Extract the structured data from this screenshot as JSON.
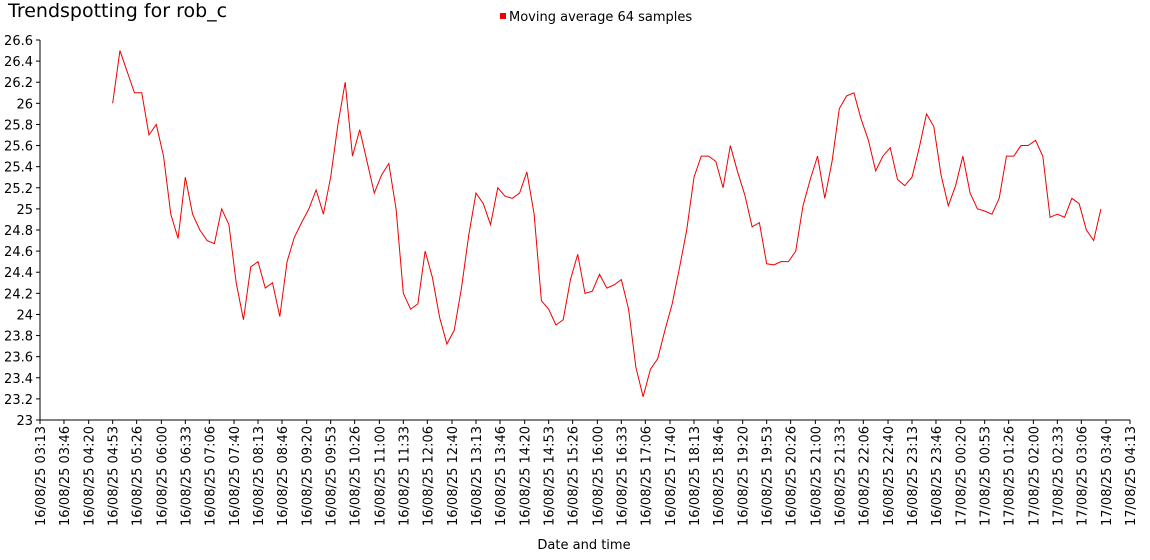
{
  "chart_data": {
    "type": "line",
    "title": "Trendspotting for rob_c",
    "x_label": "Date and time",
    "legend": "top",
    "x": [
      "16/08/25 04:53",
      "16/08/25 05:03",
      "16/08/25 05:13",
      "16/08/25 05:23",
      "16/08/25 05:33",
      "16/08/25 05:43",
      "16/08/25 05:53",
      "16/08/25 06:03",
      "16/08/25 06:13",
      "16/08/25 06:23",
      "16/08/25 06:33",
      "16/08/25 06:43",
      "16/08/25 06:53",
      "16/08/25 07:03",
      "16/08/25 07:13",
      "16/08/25 07:23",
      "16/08/25 07:33",
      "16/08/25 07:43",
      "16/08/25 07:53",
      "16/08/25 08:03",
      "16/08/25 08:13",
      "16/08/25 08:23",
      "16/08/25 08:33",
      "16/08/25 08:43",
      "16/08/25 08:53",
      "16/08/25 09:03",
      "16/08/25 09:13",
      "16/08/25 09:23",
      "16/08/25 09:33",
      "16/08/25 09:43",
      "16/08/25 09:53",
      "16/08/25 10:03",
      "16/08/25 10:13",
      "16/08/25 10:23",
      "16/08/25 10:33",
      "16/08/25 10:43",
      "16/08/25 10:53",
      "16/08/25 11:03",
      "16/08/25 11:13",
      "16/08/25 11:23",
      "16/08/25 11:33",
      "16/08/25 11:43",
      "16/08/25 11:53",
      "16/08/25 12:03",
      "16/08/25 12:13",
      "16/08/25 12:23",
      "16/08/25 12:33",
      "16/08/25 12:43",
      "16/08/25 12:53",
      "16/08/25 13:03",
      "16/08/25 13:13",
      "16/08/25 13:23",
      "16/08/25 13:33",
      "16/08/25 13:43",
      "16/08/25 13:53",
      "16/08/25 14:03",
      "16/08/25 14:13",
      "16/08/25 14:23",
      "16/08/25 14:33",
      "16/08/25 14:43",
      "16/08/25 14:53",
      "16/08/25 15:03",
      "16/08/25 15:13",
      "16/08/25 15:23",
      "16/08/25 15:33",
      "16/08/25 15:43",
      "16/08/25 15:53",
      "16/08/25 16:03",
      "16/08/25 16:13",
      "16/08/25 16:23",
      "16/08/25 16:33",
      "16/08/25 16:43",
      "16/08/25 16:53",
      "16/08/25 17:03",
      "16/08/25 17:13",
      "16/08/25 17:23",
      "16/08/25 17:33",
      "16/08/25 17:43",
      "16/08/25 17:53",
      "16/08/25 18:03",
      "16/08/25 18:13",
      "16/08/25 18:23",
      "16/08/25 18:33",
      "16/08/25 18:43",
      "16/08/25 18:53",
      "16/08/25 19:03",
      "16/08/25 19:13",
      "16/08/25 19:23",
      "16/08/25 19:33",
      "16/08/25 19:43",
      "16/08/25 19:53",
      "16/08/25 20:03",
      "16/08/25 20:13",
      "16/08/25 20:23",
      "16/08/25 20:33",
      "16/08/25 20:43",
      "16/08/25 20:53",
      "16/08/25 21:03",
      "16/08/25 21:13",
      "16/08/25 21:23",
      "16/08/25 21:33",
      "16/08/25 21:43",
      "16/08/25 21:53",
      "16/08/25 22:03",
      "16/08/25 22:13",
      "16/08/25 22:23",
      "16/08/25 22:33",
      "16/08/25 22:43",
      "16/08/25 22:53",
      "16/08/25 23:03",
      "16/08/25 23:13",
      "16/08/25 23:23",
      "16/08/25 23:33",
      "16/08/25 23:43",
      "16/08/25 23:53",
      "17/08/25 00:03",
      "17/08/25 00:13",
      "17/08/25 00:23",
      "17/08/25 00:33",
      "17/08/25 00:43",
      "17/08/25 00:53",
      "17/08/25 01:03",
      "17/08/25 01:13",
      "17/08/25 01:23",
      "17/08/25 01:33",
      "17/08/25 01:43",
      "17/08/25 01:53",
      "17/08/25 02:03",
      "17/08/25 02:13",
      "17/08/25 02:23",
      "17/08/25 02:33",
      "17/08/25 02:43",
      "17/08/25 02:53",
      "17/08/25 03:03",
      "17/08/25 03:13",
      "17/08/25 03:23",
      "17/08/25 03:33"
    ],
    "series": [
      {
        "name": "Moving average 64 samples",
        "color": "#ee0000",
        "values": [
          26.0,
          26.5,
          26.3,
          26.1,
          26.1,
          25.7,
          25.8,
          25.5,
          24.95,
          24.72,
          25.3,
          24.95,
          24.8,
          24.7,
          24.67,
          25.0,
          24.85,
          24.3,
          23.95,
          24.45,
          24.5,
          24.25,
          24.3,
          23.98,
          24.5,
          24.73,
          24.87,
          25.0,
          25.18,
          24.95,
          25.3,
          25.8,
          26.2,
          25.5,
          25.75,
          25.45,
          25.15,
          25.32,
          25.43,
          25.0,
          24.2,
          24.05,
          24.1,
          24.6,
          24.35,
          23.97,
          23.72,
          23.85,
          24.25,
          24.75,
          25.15,
          25.05,
          24.85,
          25.2,
          25.12,
          25.1,
          25.15,
          25.35,
          24.95,
          24.13,
          24.05,
          23.9,
          23.95,
          24.33,
          24.57,
          24.2,
          24.22,
          24.38,
          24.25,
          24.28,
          24.33,
          24.05,
          23.5,
          23.22,
          23.48,
          23.58,
          23.85,
          24.1,
          24.44,
          24.8,
          25.3,
          25.5,
          25.5,
          25.45,
          25.2,
          25.6,
          25.35,
          25.13,
          24.83,
          24.87,
          24.48,
          24.47,
          24.5,
          24.5,
          24.6,
          25.03,
          25.28,
          25.5,
          25.1,
          25.45,
          25.95,
          26.07,
          26.1,
          25.85,
          25.65,
          25.36,
          25.5,
          25.58,
          25.28,
          25.22,
          25.3,
          25.58,
          25.9,
          25.78,
          25.32,
          25.03,
          25.22,
          25.5,
          25.15,
          25.0,
          24.98,
          24.95,
          25.1,
          25.5,
          25.5,
          25.6,
          25.6,
          25.65,
          25.5,
          24.92,
          24.95,
          24.92,
          25.1,
          25.05,
          24.8,
          24.7,
          25.0
        ]
      }
    ],
    "xlim": [
      "16/08/25 03:13",
      "17/08/25 04:13"
    ],
    "xticks": [
      "16/08/25 03:13",
      "16/08/25 03:46",
      "16/08/25 04:20",
      "16/08/25 04:53",
      "16/08/25 05:26",
      "16/08/25 06:00",
      "16/08/25 06:33",
      "16/08/25 07:06",
      "16/08/25 07:40",
      "16/08/25 08:13",
      "16/08/25 08:46",
      "16/08/25 09:20",
      "16/08/25 09:53",
      "16/08/25 10:26",
      "16/08/25 11:00",
      "16/08/25 11:33",
      "16/08/25 12:06",
      "16/08/25 12:40",
      "16/08/25 13:13",
      "16/08/25 13:46",
      "16/08/25 14:20",
      "16/08/25 14:53",
      "16/08/25 15:26",
      "16/08/25 16:00",
      "16/08/25 16:33",
      "16/08/25 17:06",
      "16/08/25 17:40",
      "16/08/25 18:13",
      "16/08/25 18:46",
      "16/08/25 19:20",
      "16/08/25 19:53",
      "16/08/25 20:26",
      "16/08/25 21:00",
      "16/08/25 21:33",
      "16/08/25 22:06",
      "16/08/25 22:40",
      "16/08/25 23:13",
      "16/08/25 23:46",
      "17/08/25 00:20",
      "17/08/25 00:53",
      "17/08/25 01:26",
      "17/08/25 02:00",
      "17/08/25 02:33",
      "17/08/25 03:06",
      "17/08/25 03:40",
      "17/08/25 04:13"
    ],
    "ylim": [
      23,
      26.6
    ],
    "yticks": [
      23,
      23.2,
      23.4,
      23.6,
      23.8,
      24,
      24.2,
      24.4,
      24.6,
      24.8,
      25,
      25.2,
      25.4,
      25.6,
      25.8,
      26,
      26.2,
      26.4,
      26.6
    ],
    "grid": false
  }
}
